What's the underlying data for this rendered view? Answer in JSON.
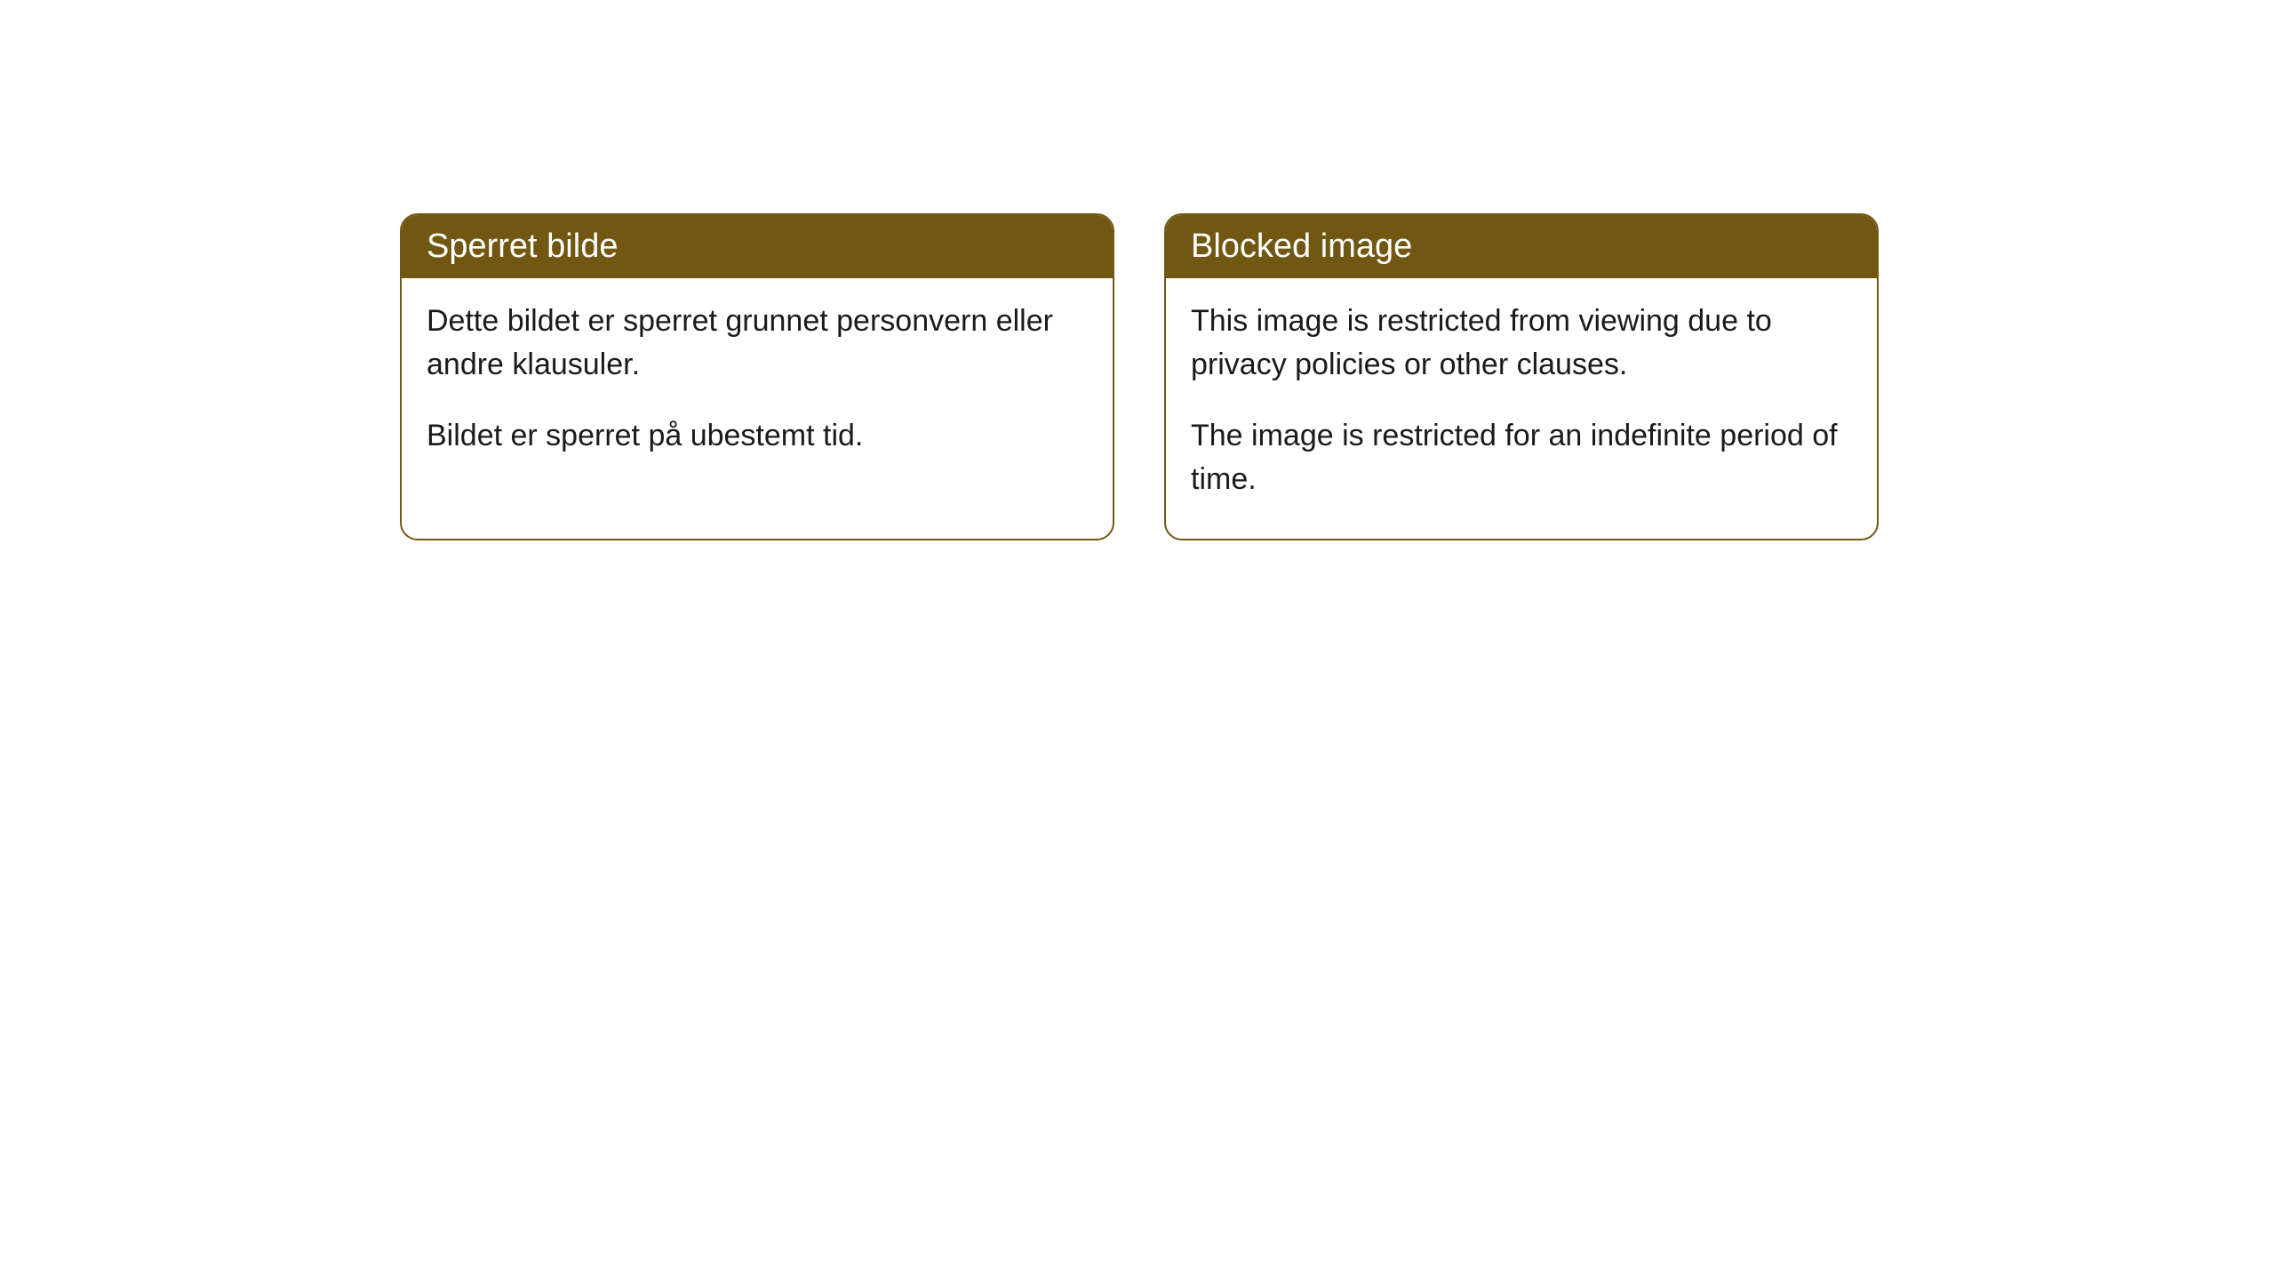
{
  "cards": [
    {
      "title": "Sperret bilde",
      "paragraph1": "Dette bildet er sperret grunnet personvern eller andre klausuler.",
      "paragraph2": "Bildet er sperret på ubestemt tid."
    },
    {
      "title": "Blocked image",
      "paragraph1": "This image is restricted from viewing due to privacy policies or other clauses.",
      "paragraph2": "The image is restricted for an indefinite period of time."
    }
  ],
  "styling": {
    "header_background": "#715711",
    "header_text_color": "#ffffff",
    "border_color": "#715711",
    "body_background": "#ffffff",
    "body_text_color": "#1a1a1a",
    "border_radius": 20,
    "title_fontsize": 38,
    "body_fontsize": 34
  }
}
